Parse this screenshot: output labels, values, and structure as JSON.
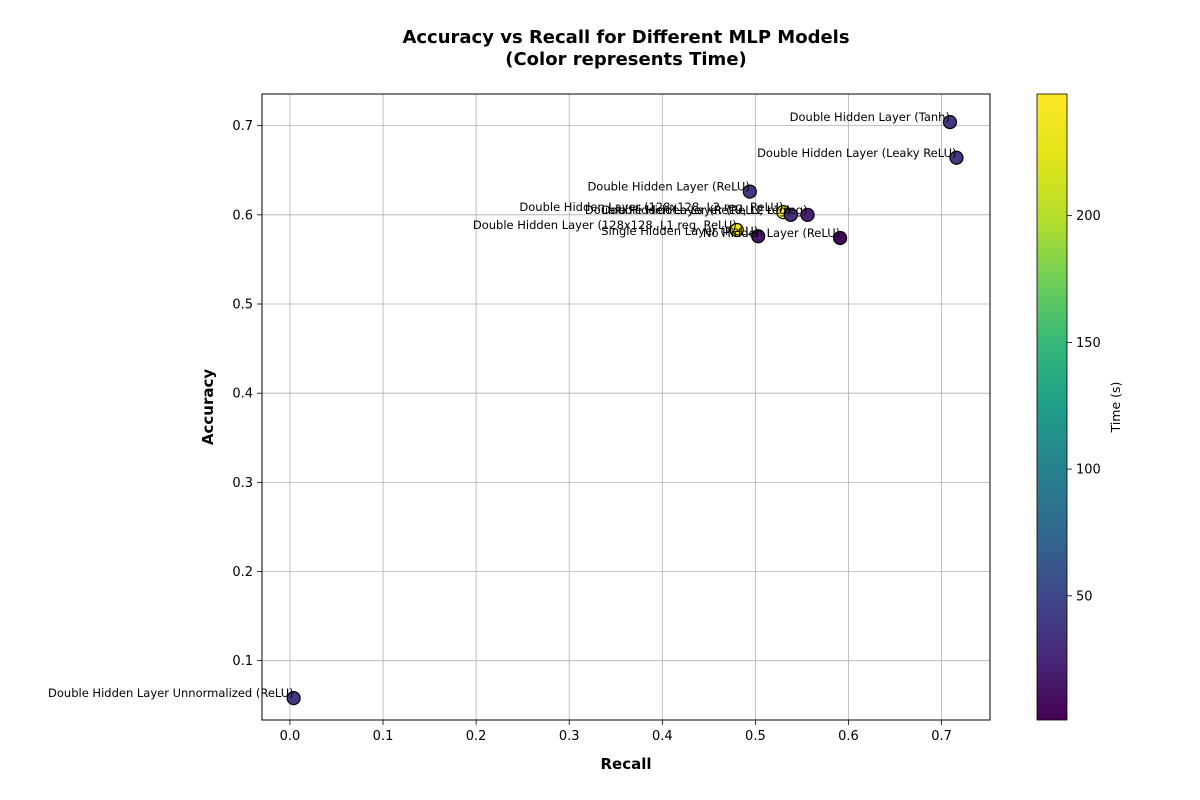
{
  "chart_data": {
    "type": "scatter",
    "title_line1": "Accuracy vs Recall for Different MLP Models",
    "title_line2": "(Color represents Time)",
    "xlabel": "Recall",
    "ylabel": "Accuracy",
    "xlim": [
      -0.03,
      0.752
    ],
    "ylim": [
      0.0335,
      0.7355
    ],
    "xticks": [
      0.0,
      0.1,
      0.2,
      0.3,
      0.4,
      0.5,
      0.6,
      0.7
    ],
    "xtick_labels": [
      "0.0",
      "0.1",
      "0.2",
      "0.3",
      "0.4",
      "0.5",
      "0.6",
      "0.7"
    ],
    "yticks": [
      0.1,
      0.2,
      0.3,
      0.4,
      0.5,
      0.6,
      0.7
    ],
    "ytick_labels": [
      "0.1",
      "0.2",
      "0.3",
      "0.4",
      "0.5",
      "0.6",
      "0.7"
    ],
    "grid": true,
    "colorbar": {
      "label": "Time (s)",
      "colormap": "viridis",
      "range": [
        1,
        248
      ],
      "ticks": [
        50,
        100,
        150,
        200
      ],
      "tick_labels": [
        "50",
        "100",
        "150",
        "200"
      ]
    },
    "points": [
      {
        "label": "Double Hidden Layer (Tanh)",
        "x": 0.709,
        "y": 0.704,
        "time": 38
      },
      {
        "label": "Double Hidden Layer (Leaky ReLU)",
        "x": 0.716,
        "y": 0.664,
        "time": 38
      },
      {
        "label": "Double Hidden Layer (ReLU)",
        "x": 0.494,
        "y": 0.626,
        "time": 38
      },
      {
        "label": "Double Hidden Layer (128x128, L2 reg, ReLU)",
        "x": 0.53,
        "y": 0.603,
        "time": 245
      },
      {
        "label": "Double Hidden Layer (ReLU, L2 reg)",
        "x": 0.538,
        "y": 0.6,
        "time": 30
      },
      {
        "label": "Double Hidden Layer (ReLU, L1 reg)",
        "x": 0.556,
        "y": 0.6,
        "time": 22
      },
      {
        "label": "Double Hidden Layer (128x128, L1 reg, ReLU)",
        "x": 0.48,
        "y": 0.583,
        "time": 240
      },
      {
        "label": "Single Hidden Layer (ReLU)",
        "x": 0.503,
        "y": 0.576,
        "time": 14
      },
      {
        "label": "No Hidden Layer (ReLU)",
        "x": 0.591,
        "y": 0.574,
        "time": 3
      },
      {
        "label": "Double Hidden Layer Unnormalized (ReLU)",
        "x": 0.004,
        "y": 0.058,
        "time": 38
      }
    ]
  }
}
